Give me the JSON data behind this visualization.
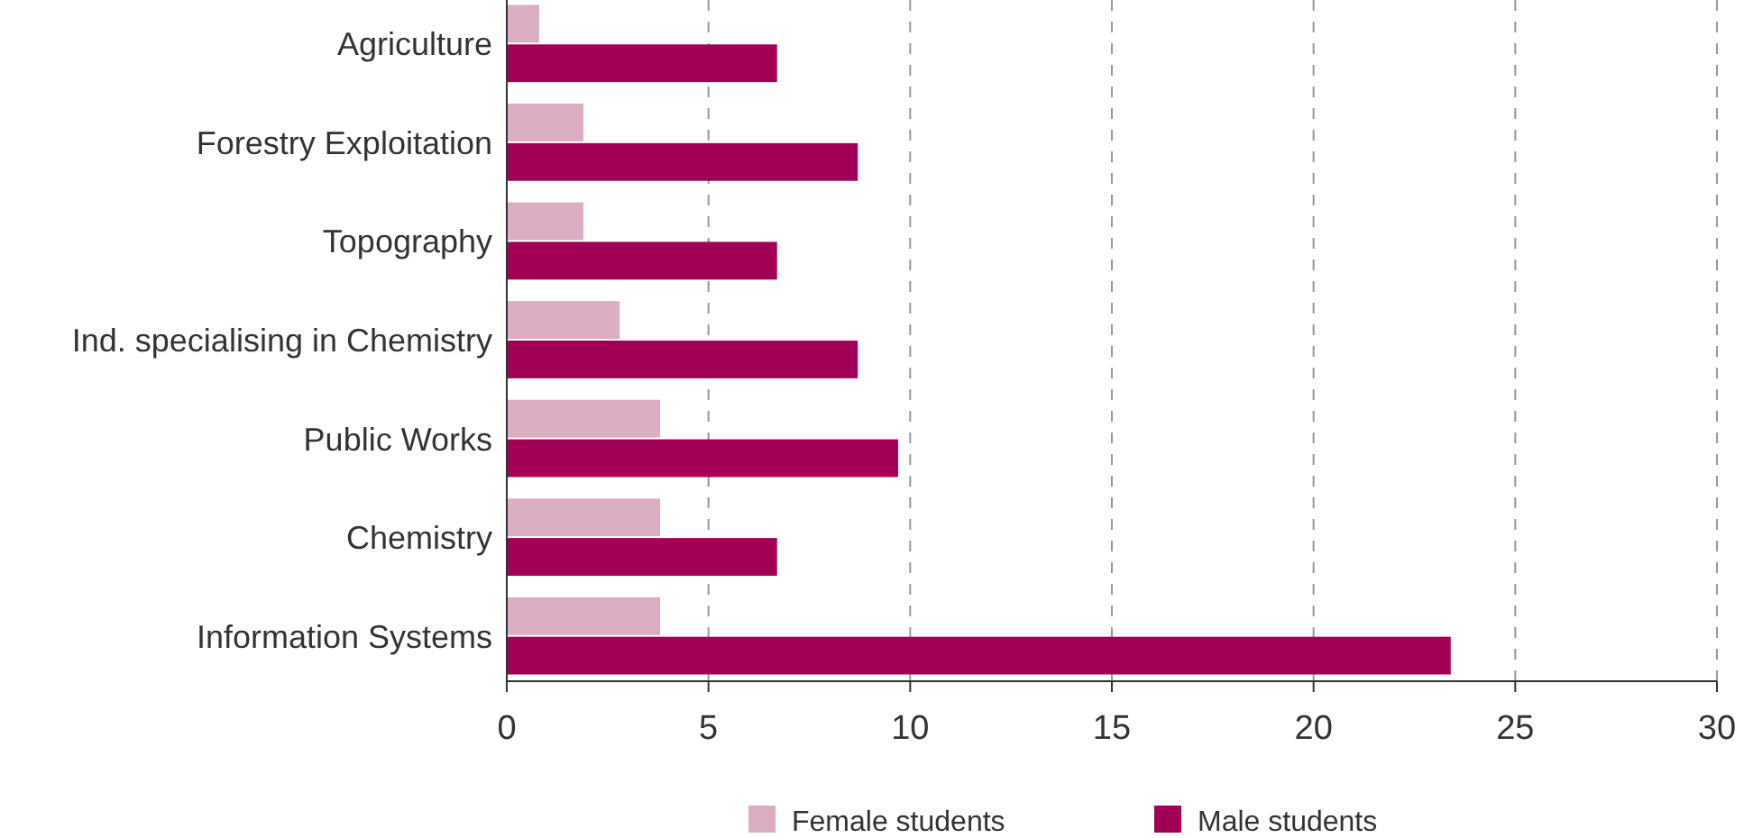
{
  "chart_data": {
    "type": "bar",
    "orientation": "horizontal",
    "categories": [
      "Agriculture",
      "Forestry Exploitation",
      "Topography",
      "Ind. specialising in Chemistry",
      "Public Works",
      "Chemistry",
      "Information Systems"
    ],
    "series": [
      {
        "name": "Female students",
        "color": "#dbadc3",
        "values": [
          0.8,
          1.9,
          1.9,
          2.8,
          3.8,
          3.8,
          3.8
        ]
      },
      {
        "name": "Male students",
        "color": "#a10055",
        "values": [
          6.7,
          8.7,
          6.7,
          8.7,
          9.7,
          6.7,
          23.4
        ]
      }
    ],
    "xlim": [
      0,
      30
    ],
    "xticks": [
      0,
      5,
      10,
      15,
      20,
      25,
      30
    ],
    "grid": "x",
    "legend": "bottom"
  }
}
